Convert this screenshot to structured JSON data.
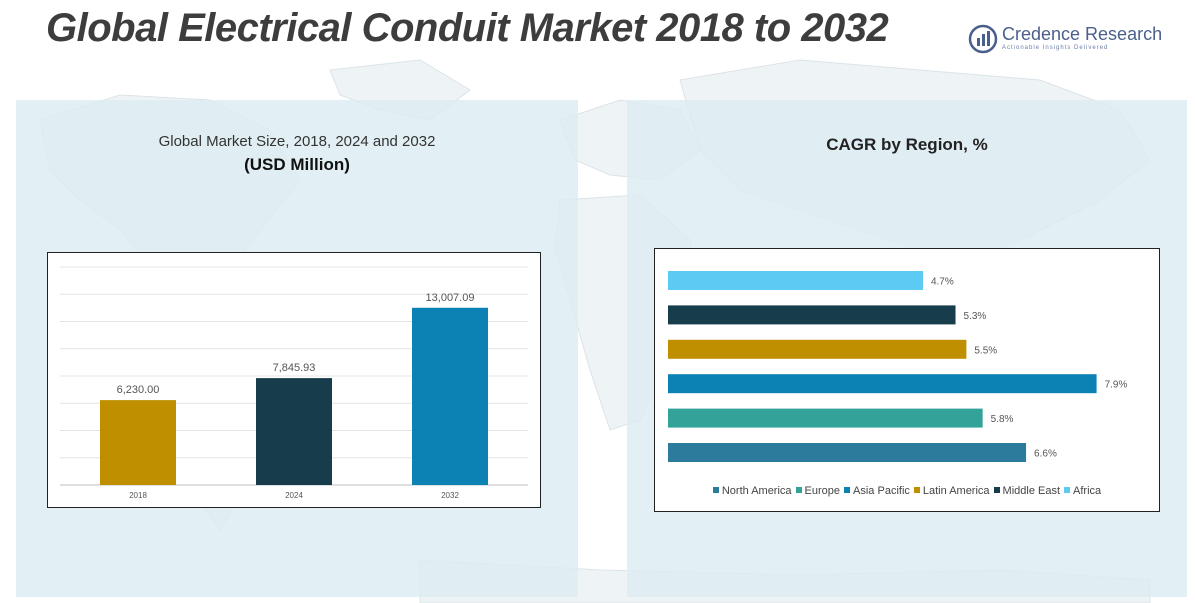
{
  "header": {
    "title": "Global Electrical Conduit Market 2018 to 2032",
    "logo_name": "Credence Research",
    "logo_tagline": "Actionable Insights Delivered"
  },
  "colors": {
    "panel_bg": "#dcebf1",
    "logo": "#4a5f8c"
  },
  "chart_data": [
    {
      "type": "bar",
      "title": "Global Market Size, 2018, 2024 and 2032",
      "subtitle": "(USD Million)",
      "categories": [
        "2018",
        "2024",
        "2032"
      ],
      "values": [
        6230.0,
        7845.93,
        13007.09
      ],
      "value_labels": [
        "6,230.00",
        "7,845.93",
        "13,007.09"
      ],
      "colors": [
        "#bf8f00",
        "#173c4b",
        "#0b82b3"
      ],
      "ylim": [
        0,
        16000
      ],
      "grid": true
    },
    {
      "type": "bar",
      "orientation": "horizontal",
      "title": "CAGR by Region, %",
      "categories": [
        "Africa",
        "Middle East",
        "Latin America",
        "Asia Pacific",
        "Europe",
        "North America"
      ],
      "values": [
        4.7,
        5.3,
        5.5,
        7.9,
        5.8,
        6.6
      ],
      "value_labels": [
        "4.7%",
        "5.3%",
        "5.5%",
        "7.9%",
        "5.8%",
        "6.6%"
      ],
      "colors": [
        "#5ccaf2",
        "#173c4b",
        "#bf8f00",
        "#0b82b3",
        "#33a39a",
        "#2c7a9c"
      ],
      "legend": [
        "North America",
        "Europe",
        "Asia Pacific",
        "Latin America",
        "Middle East",
        "Africa"
      ],
      "legend_colors": [
        "#2c7a9c",
        "#33a39a",
        "#0b82b3",
        "#bf8f00",
        "#173c4b",
        "#5ccaf2"
      ],
      "legend_position": "bottom",
      "xlim": [
        0,
        8
      ]
    }
  ]
}
